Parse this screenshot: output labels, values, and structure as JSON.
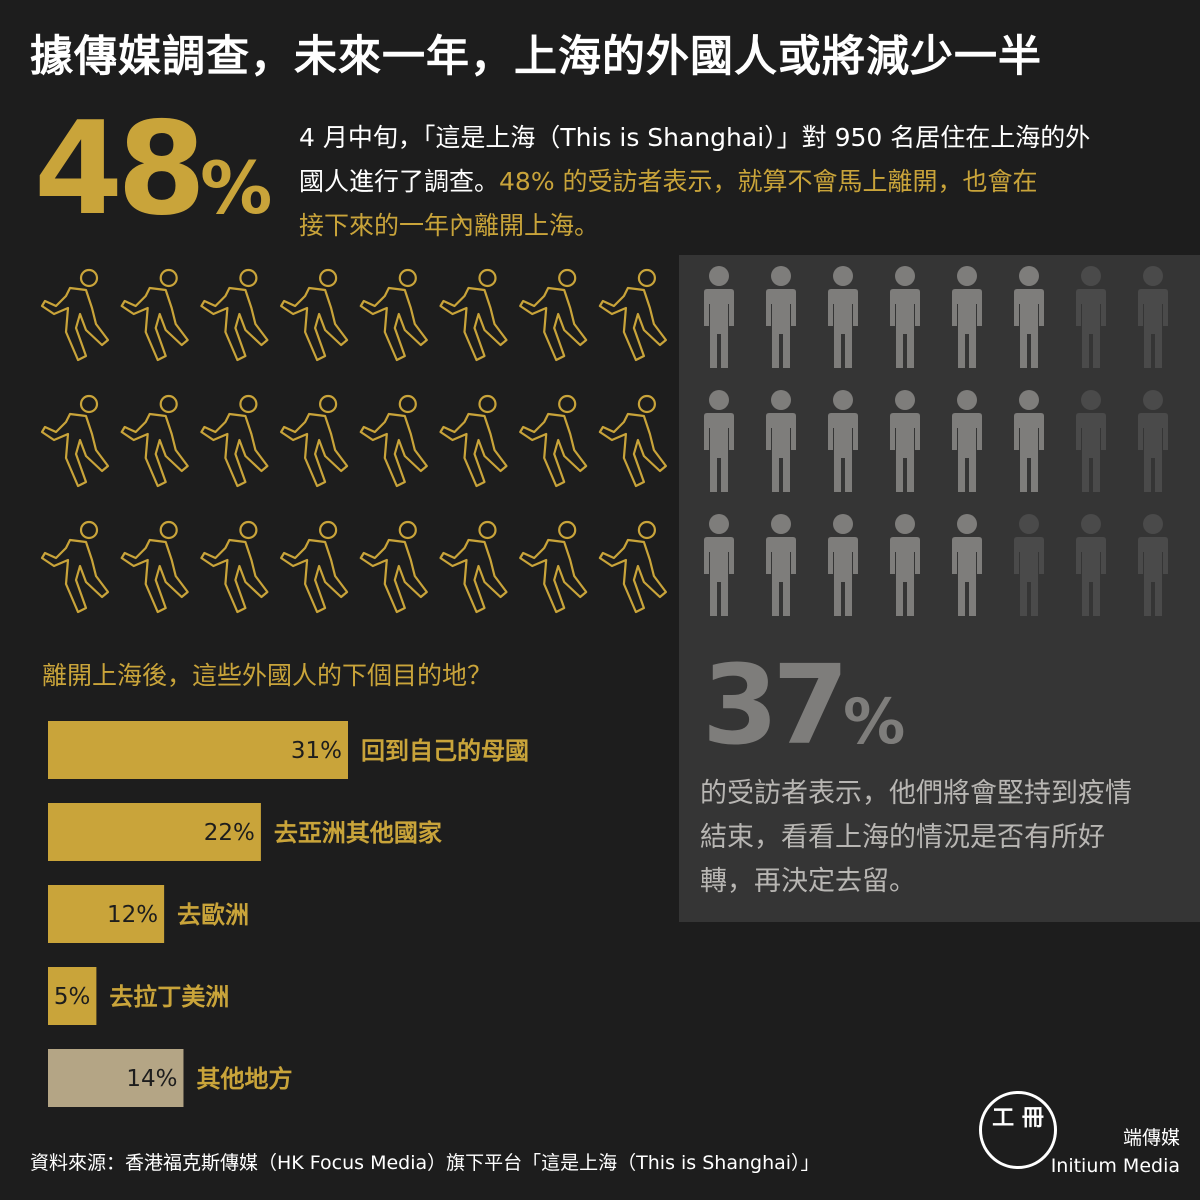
{
  "title": "據傳媒調查，未來一年，上海的外國人或將減少一半",
  "stat_leave": {
    "number": "48",
    "unit": "%"
  },
  "intro": {
    "line1": "4 月中旬，「這是上海（This is Shanghai）」對 950 名居住在上海的外",
    "line2_white": "國人進行了調查。",
    "line2_gold": "48%  的受訪者表示，就算不會馬上離開，也會在",
    "line3_gold": "接下來的一年內離開上海。"
  },
  "stat_stay": {
    "number": "37",
    "unit": "%"
  },
  "stay_desc": {
    "line1": "的受訪者表示，他們將會堅持到疫情",
    "line2": "結束，看看上海的情況是否有所好",
    "line3": "轉，再決定去留。"
  },
  "question": "離開上海後，這些外國人的下個目的地？",
  "colors": {
    "gold": "#c9a43a",
    "other_bar": "#b4a585",
    "gray_light": "#7e7d7b",
    "gray_dark": "#4a4a4a",
    "panel": "#353535",
    "background": "#1d1d1d"
  },
  "icons": {
    "walking_icon": "walking-person-icon",
    "standing_icon": "standing-person-icon",
    "walking_count": 24,
    "standing_light_count": 17,
    "standing_dark_count": 7
  },
  "chart_data": {
    "type": "bar",
    "orientation": "horizontal",
    "title": "離開上海後，這些外國人的下個目的地？",
    "categories": [
      "回到自己的母國",
      "去亞洲其他國家",
      "去歐洲",
      "去拉丁美洲",
      "其他地方"
    ],
    "values": [
      31,
      22,
      12,
      5,
      14
    ],
    "value_labels": [
      "31%",
      "22%",
      "12%",
      "5%",
      "14%"
    ],
    "unit": "%",
    "xlim": [
      0,
      31
    ],
    "grid": false
  },
  "source": "資料來源：香港福克斯傳媒（HK Focus Media）旗下平台「這是上海（This is Shanghai）」",
  "brand": {
    "zh": "端傳媒",
    "en": "Initium Media"
  },
  "logo_mark": "工 冊"
}
